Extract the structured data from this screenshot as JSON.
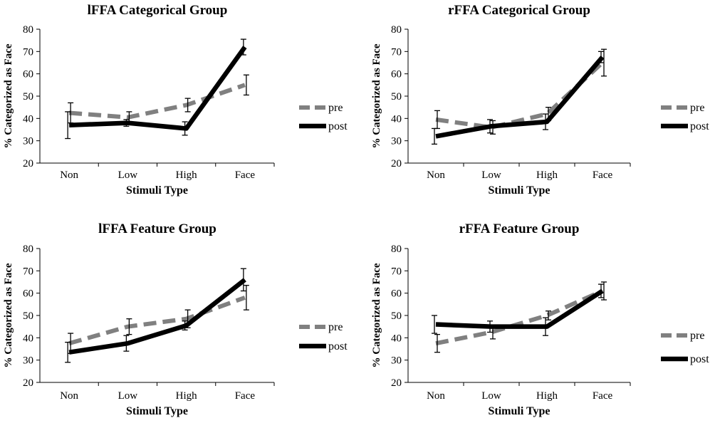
{
  "chart_data": [
    {
      "type": "line",
      "title": "lFFA Categorical Group",
      "xlabel": "Stimuli Type",
      "ylabel": "% Categorized as Face",
      "categories": [
        "Non",
        "Low",
        "High",
        "Face"
      ],
      "ylim": [
        20,
        80
      ],
      "yticks": [
        20,
        30,
        40,
        50,
        60,
        70,
        80
      ],
      "grid": false,
      "legend": "right",
      "series": [
        {
          "name": "pre",
          "style": "dashed",
          "color": "#808080",
          "values": [
            42.5,
            40.5,
            46,
            55
          ],
          "errors": [
            4.5,
            2.5,
            3,
            4.5
          ]
        },
        {
          "name": "post",
          "style": "solid",
          "color": "#000000",
          "values": [
            37,
            38,
            35.5,
            72
          ],
          "errors": [
            6,
            1.5,
            3,
            3.5
          ]
        }
      ]
    },
    {
      "type": "line",
      "title": "rFFA Categorical Group",
      "xlabel": "Stimuli Type",
      "ylabel": "% Categorized as Face",
      "categories": [
        "Non",
        "Low",
        "High",
        "Face"
      ],
      "ylim": [
        20,
        80
      ],
      "yticks": [
        20,
        30,
        40,
        50,
        60,
        70,
        80
      ],
      "grid": false,
      "legend": "right",
      "series": [
        {
          "name": "pre",
          "style": "dashed",
          "color": "#808080",
          "values": [
            39.5,
            36,
            42,
            65
          ],
          "errors": [
            4,
            3,
            3,
            6
          ]
        },
        {
          "name": "post",
          "style": "solid",
          "color": "#000000",
          "values": [
            32,
            36.5,
            38.5,
            67.5
          ],
          "errors": [
            3.5,
            3,
            3.5,
            2.5
          ]
        }
      ]
    },
    {
      "type": "line",
      "title": "lFFA Feature Group",
      "xlabel": "Stimuli Type",
      "ylabel": "% Categorized as Face",
      "categories": [
        "Non",
        "Low",
        "High",
        "Face"
      ],
      "ylim": [
        20,
        80
      ],
      "yticks": [
        20,
        30,
        40,
        50,
        60,
        70,
        80
      ],
      "grid": false,
      "legend": "right",
      "series": [
        {
          "name": "pre",
          "style": "dashed",
          "color": "#808080",
          "values": [
            37.5,
            45,
            48.5,
            58
          ],
          "errors": [
            4.5,
            3.5,
            4,
            5.5
          ]
        },
        {
          "name": "post",
          "style": "solid",
          "color": "#000000",
          "values": [
            33.5,
            37.5,
            45.5,
            66
          ],
          "errors": [
            4.5,
            3.5,
            2,
            5
          ]
        }
      ]
    },
    {
      "type": "line",
      "title": "rFFA Feature Group",
      "xlabel": "Stimuli Type",
      "ylabel": "% Categorized as Face",
      "categories": [
        "Non",
        "Low",
        "High",
        "Face"
      ],
      "ylim": [
        20,
        80
      ],
      "yticks": [
        20,
        30,
        40,
        50,
        60,
        70,
        80
      ],
      "grid": false,
      "legend": "right",
      "series": [
        {
          "name": "pre",
          "style": "dashed",
          "color": "#808080",
          "values": [
            37.5,
            42.5,
            50,
            61
          ],
          "errors": [
            4,
            3,
            2,
            4
          ]
        },
        {
          "name": "post",
          "style": "solid",
          "color": "#000000",
          "values": [
            46,
            45,
            45,
            61
          ],
          "errors": [
            4,
            2.5,
            4,
            3
          ]
        }
      ]
    }
  ]
}
